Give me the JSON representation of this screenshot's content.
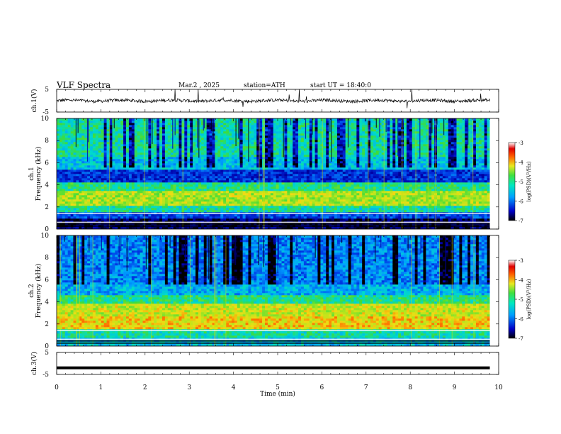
{
  "header": {
    "title": "VLF Spectra",
    "date": "Mar.2 , 2025",
    "station": "station=ATH",
    "start_time": "start UT = 18:40:0"
  },
  "chart_data": [
    {
      "type": "line",
      "ylabel": "ch.1(V)",
      "ylim": [
        -5,
        5
      ],
      "yticks": [
        "5",
        "-5"
      ],
      "baseline": 0,
      "approx_amplitude": 0.7,
      "note_spikes": "occasional spikes up to ~5 V"
    },
    {
      "type": "heatmap",
      "ylabel": "ch.1\nFrequency (kHz)",
      "ylim": [
        0,
        10
      ],
      "yticks": [
        "0",
        "2",
        "4",
        "6",
        "8",
        "10"
      ],
      "colorbar": {
        "label": "log(PSD)(V²/Hz)",
        "range": [
          -7,
          -3
        ],
        "ticks": [
          "-3",
          "-4",
          "-5",
          "-6",
          "-7"
        ]
      },
      "bands": [
        {
          "from": 0.0,
          "to": 0.9,
          "level": -6.8
        },
        {
          "from": 0.9,
          "to": 1.6,
          "level": -6.2
        },
        {
          "from": 1.6,
          "to": 2.1,
          "level": -5.3
        },
        {
          "from": 2.1,
          "to": 3.4,
          "level": -4.6
        },
        {
          "from": 3.4,
          "to": 4.2,
          "level": -5.2
        },
        {
          "from": 4.2,
          "to": 5.4,
          "level": -6.3
        },
        {
          "from": 5.4,
          "to": 6.5,
          "level": -5.6
        },
        {
          "from": 6.5,
          "to": 10.0,
          "level": -5.3
        }
      ]
    },
    {
      "type": "heatmap",
      "ylabel": "ch.2\nFrequency (kHz)",
      "ylim": [
        0,
        10
      ],
      "yticks": [
        "0",
        "2",
        "4",
        "6",
        "8",
        "10"
      ],
      "colorbar": {
        "label": "log(PSD)(V²/Hz)",
        "range": [
          -7,
          -3
        ],
        "ticks": [
          "-3",
          "-4",
          "-5",
          "-6",
          "-7"
        ]
      },
      "bands": [
        {
          "from": 0.0,
          "to": 0.7,
          "level": -5.6
        },
        {
          "from": 0.7,
          "to": 1.5,
          "level": -5.3
        },
        {
          "from": 1.5,
          "to": 2.6,
          "level": -4.3
        },
        {
          "from": 2.6,
          "to": 3.8,
          "level": -4.5
        },
        {
          "from": 3.8,
          "to": 4.6,
          "level": -5.2
        },
        {
          "from": 4.6,
          "to": 5.6,
          "level": -5.7
        },
        {
          "from": 5.6,
          "to": 10.0,
          "level": -5.9
        }
      ]
    },
    {
      "type": "line",
      "ylabel": "ch.3(V)",
      "ylim": [
        -5,
        5
      ],
      "yticks": [
        "5",
        "-5"
      ],
      "constant_value": -2
    }
  ],
  "xaxis": {
    "label": "Time (min)",
    "xlim": [
      0,
      10
    ],
    "ticks": [
      "0",
      "1",
      "2",
      "3",
      "4",
      "5",
      "6",
      "7",
      "8",
      "9",
      "10"
    ],
    "data_end": 9.8
  }
}
